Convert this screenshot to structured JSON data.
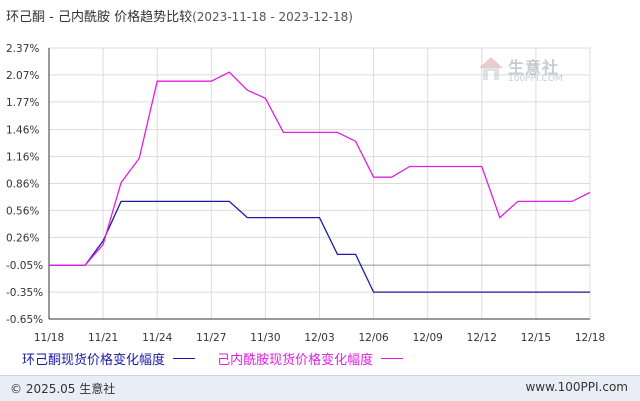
{
  "header": {
    "title": "环己酮 - 己内酰胺 价格趋势比较",
    "range": "(2023-11-18 - 2023-12-18)"
  },
  "watermark": {
    "name": "生意社",
    "url": "100PPI.COM"
  },
  "footer": {
    "left": "© 2025.05 生意社",
    "right": "www.100PPI.com"
  },
  "colors": {
    "series1": "#1a1aa6",
    "series2": "#e020e0",
    "axis": "#333333",
    "grid": "#dcdcdc"
  },
  "chart_data": {
    "type": "line",
    "x_ticks": [
      "11/18",
      "11/21",
      "11/24",
      "11/27",
      "11/30",
      "12/03",
      "12/06",
      "12/09",
      "12/12",
      "12/15",
      "12/18"
    ],
    "y_ticks": [
      "2.37%",
      "2.07%",
      "1.77%",
      "1.46%",
      "1.16%",
      "0.86%",
      "0.56%",
      "0.26%",
      "-0.05%",
      "-0.35%",
      "-0.65%"
    ],
    "ylim": [
      -0.65,
      2.37
    ],
    "xlim": [
      "2023-11-18",
      "2023-12-18"
    ],
    "grid": true,
    "series": [
      {
        "name": "环己酮现货价格变化幅度",
        "points": [
          [
            "2023-11-18",
            -0.05
          ],
          [
            "2023-11-19",
            -0.05
          ],
          [
            "2023-11-20",
            -0.05
          ],
          [
            "2023-11-21",
            0.22
          ],
          [
            "2023-11-22",
            0.66
          ],
          [
            "2023-11-23",
            0.66
          ],
          [
            "2023-11-24",
            0.66
          ],
          [
            "2023-11-25",
            0.66
          ],
          [
            "2023-11-26",
            0.66
          ],
          [
            "2023-11-27",
            0.66
          ],
          [
            "2023-11-28",
            0.66
          ],
          [
            "2023-11-29",
            0.48
          ],
          [
            "2023-11-30",
            0.48
          ],
          [
            "2023-12-01",
            0.48
          ],
          [
            "2023-12-02",
            0.48
          ],
          [
            "2023-12-03",
            0.48
          ],
          [
            "2023-12-04",
            0.07
          ],
          [
            "2023-12-05",
            0.07
          ],
          [
            "2023-12-06",
            -0.35
          ],
          [
            "2023-12-07",
            -0.35
          ],
          [
            "2023-12-08",
            -0.35
          ],
          [
            "2023-12-09",
            -0.35
          ],
          [
            "2023-12-10",
            -0.35
          ],
          [
            "2023-12-11",
            -0.35
          ],
          [
            "2023-12-12",
            -0.35
          ],
          [
            "2023-12-13",
            -0.35
          ],
          [
            "2023-12-14",
            -0.35
          ],
          [
            "2023-12-15",
            -0.35
          ],
          [
            "2023-12-16",
            -0.35
          ],
          [
            "2023-12-17",
            -0.35
          ],
          [
            "2023-12-18",
            -0.35
          ]
        ]
      },
      {
        "name": "己内酰胺现货价格变化幅度",
        "points": [
          [
            "2023-11-18",
            -0.05
          ],
          [
            "2023-11-19",
            -0.05
          ],
          [
            "2023-11-20",
            -0.05
          ],
          [
            "2023-11-21",
            0.18
          ],
          [
            "2023-11-22",
            0.87
          ],
          [
            "2023-11-23",
            1.14
          ],
          [
            "2023-11-24",
            2.0
          ],
          [
            "2023-11-25",
            2.0
          ],
          [
            "2023-11-26",
            2.0
          ],
          [
            "2023-11-27",
            2.0
          ],
          [
            "2023-11-28",
            2.1
          ],
          [
            "2023-11-29",
            1.9
          ],
          [
            "2023-11-30",
            1.81
          ],
          [
            "2023-12-01",
            1.43
          ],
          [
            "2023-12-02",
            1.43
          ],
          [
            "2023-12-03",
            1.43
          ],
          [
            "2023-12-04",
            1.43
          ],
          [
            "2023-12-05",
            1.33
          ],
          [
            "2023-12-06",
            0.93
          ],
          [
            "2023-12-07",
            0.93
          ],
          [
            "2023-12-08",
            1.05
          ],
          [
            "2023-12-09",
            1.05
          ],
          [
            "2023-12-10",
            1.05
          ],
          [
            "2023-12-11",
            1.05
          ],
          [
            "2023-12-12",
            1.05
          ],
          [
            "2023-12-13",
            0.48
          ],
          [
            "2023-12-14",
            0.66
          ],
          [
            "2023-12-15",
            0.66
          ],
          [
            "2023-12-16",
            0.66
          ],
          [
            "2023-12-17",
            0.66
          ],
          [
            "2023-12-18",
            0.76
          ]
        ]
      }
    ]
  }
}
